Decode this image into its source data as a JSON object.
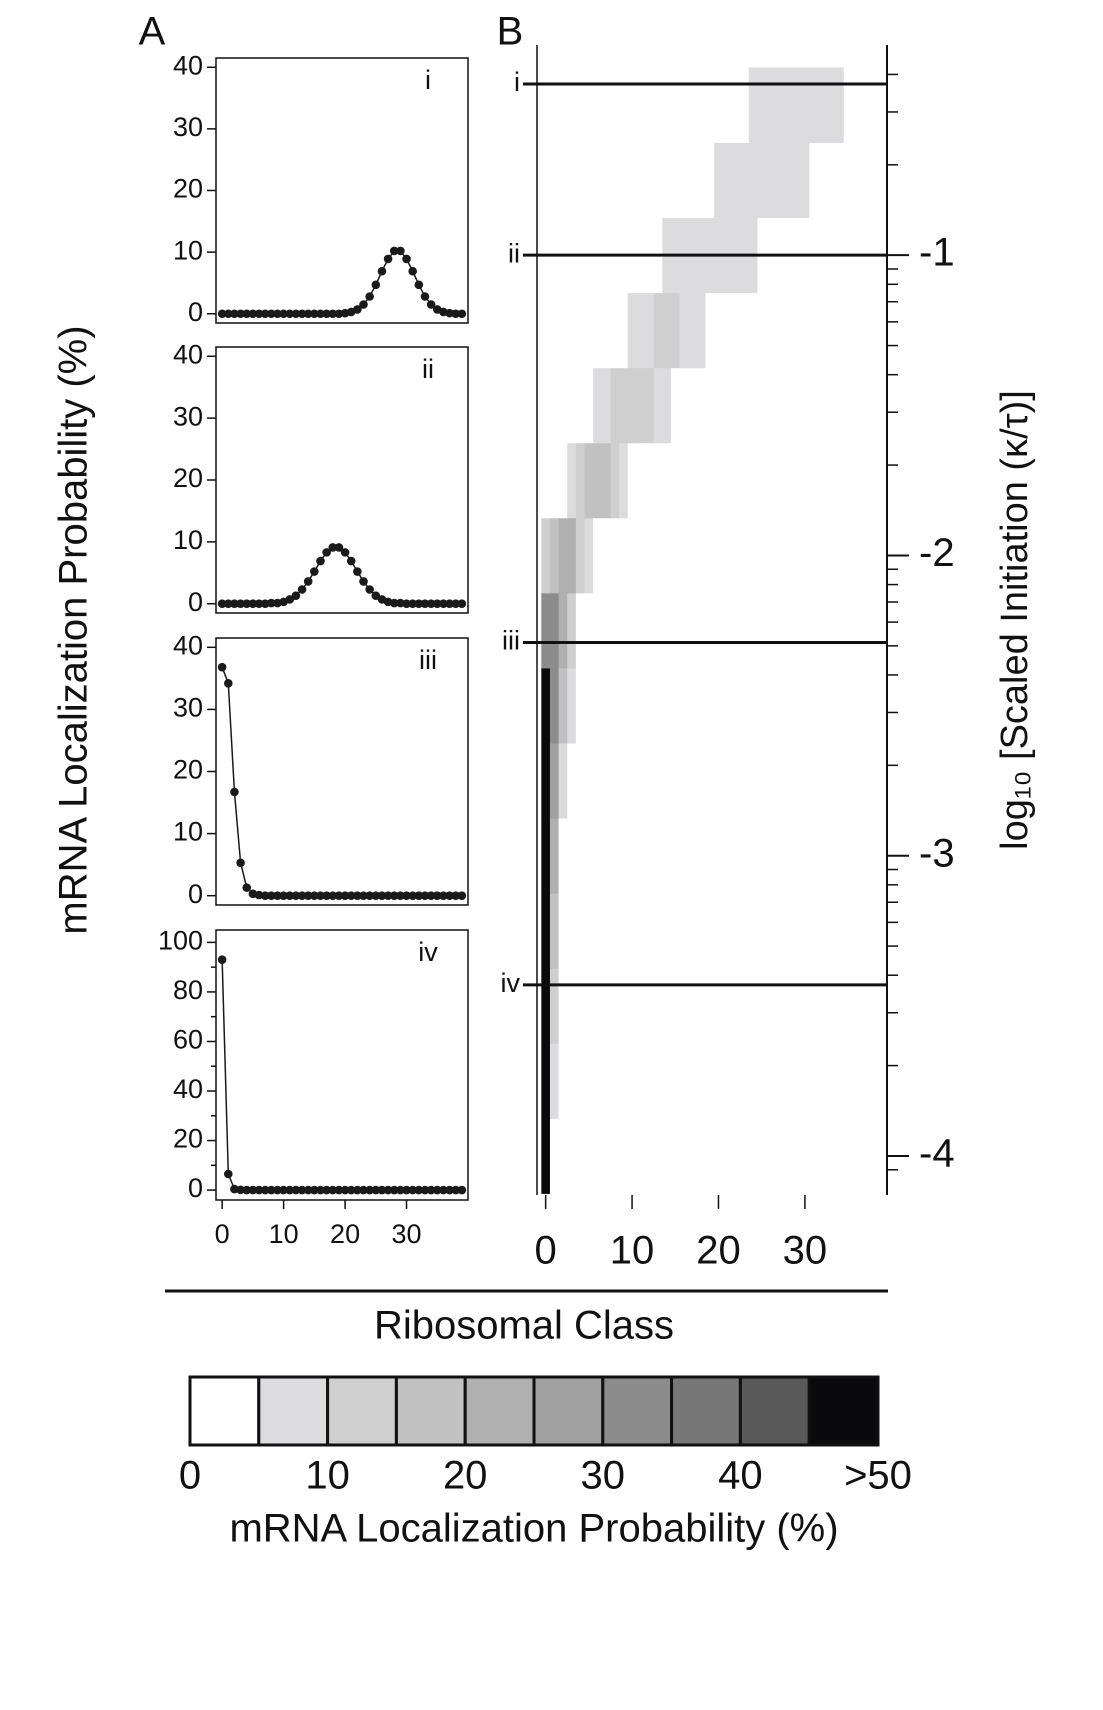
{
  "figure": {
    "panel_labels": [
      "A",
      "B"
    ],
    "ylabel": "mRNA Localization Probability (%)",
    "xlabel": "Ribosomal Class"
  },
  "chart_data": [
    {
      "type": "line",
      "annotation": "i",
      "color": "#1a1a1a",
      "x": [
        0,
        1,
        2,
        3,
        4,
        5,
        6,
        7,
        8,
        9,
        10,
        11,
        12,
        13,
        14,
        15,
        16,
        17,
        18,
        19,
        20,
        21,
        22,
        23,
        24,
        25,
        26,
        27,
        28,
        29,
        30,
        31,
        32,
        33,
        34,
        35,
        36,
        37,
        38,
        39
      ],
      "values": [
        0,
        0,
        0,
        0,
        0,
        0,
        0,
        0,
        0,
        0,
        0,
        0,
        0,
        0,
        0,
        0,
        0,
        0,
        0,
        0,
        0.1,
        0.3,
        0.7,
        1.5,
        2.8,
        4.7,
        6.9,
        8.9,
        10.2,
        10.2,
        8.9,
        6.9,
        4.7,
        2.8,
        1.5,
        0.7,
        0.3,
        0.1,
        0,
        0
      ],
      "xlim": [
        -1,
        40
      ],
      "ylim": [
        -1.5,
        41.5
      ],
      "yticks": [
        0,
        10,
        20,
        30,
        40
      ]
    },
    {
      "type": "line",
      "annotation": "ii",
      "color": "#1a1a1a",
      "x": [
        0,
        1,
        2,
        3,
        4,
        5,
        6,
        7,
        8,
        9,
        10,
        11,
        12,
        13,
        14,
        15,
        16,
        17,
        18,
        19,
        20,
        21,
        22,
        23,
        24,
        25,
        26,
        27,
        28,
        29,
        30,
        31,
        32,
        33,
        34,
        35,
        36,
        37,
        38,
        39
      ],
      "values": [
        0,
        0,
        0,
        0,
        0,
        0,
        0,
        0,
        0.1,
        0.1,
        0.3,
        0.7,
        1.3,
        2.3,
        3.6,
        5.2,
        6.9,
        8.3,
        9.1,
        9.1,
        8.3,
        6.9,
        5.2,
        3.6,
        2.3,
        1.3,
        0.7,
        0.3,
        0.1,
        0.1,
        0,
        0,
        0,
        0,
        0,
        0,
        0,
        0,
        0,
        0
      ],
      "xlim": [
        -1,
        40
      ],
      "ylim": [
        -1.5,
        41.5
      ],
      "yticks": [
        0,
        10,
        20,
        30,
        40
      ]
    },
    {
      "type": "line",
      "annotation": "iii",
      "color": "#1a1a1a",
      "x": [
        0,
        1,
        2,
        3,
        4,
        5,
        6,
        7,
        8,
        9,
        10,
        11,
        12,
        13,
        14,
        15,
        16,
        17,
        18,
        19,
        20,
        21,
        22,
        23,
        24,
        25,
        26,
        27,
        28,
        29,
        30,
        31,
        32,
        33,
        34,
        35,
        36,
        37,
        38,
        39
      ],
      "values": [
        36.8,
        34.2,
        16.7,
        5.3,
        1.3,
        0.3,
        0.1,
        0,
        0,
        0,
        0,
        0,
        0,
        0,
        0,
        0,
        0,
        0,
        0,
        0,
        0,
        0,
        0,
        0,
        0,
        0,
        0,
        0,
        0,
        0,
        0,
        0,
        0,
        0,
        0,
        0,
        0,
        0,
        0,
        0
      ],
      "xlim": [
        -1,
        40
      ],
      "ylim": [
        -1.5,
        41.5
      ],
      "yticks": [
        0,
        10,
        20,
        30,
        40
      ]
    },
    {
      "type": "line",
      "annotation": "iv",
      "color": "#1a1a1a",
      "x": [
        0,
        1,
        2,
        3,
        4,
        5,
        6,
        7,
        8,
        9,
        10,
        11,
        12,
        13,
        14,
        15,
        16,
        17,
        18,
        19,
        20,
        21,
        22,
        23,
        24,
        25,
        26,
        27,
        28,
        29,
        30,
        31,
        32,
        33,
        34,
        35,
        36,
        37,
        38,
        39
      ],
      "values": [
        93,
        6.5,
        0.4,
        0.1,
        0,
        0,
        0,
        0,
        0,
        0,
        0,
        0,
        0,
        0,
        0,
        0,
        0,
        0,
        0,
        0,
        0,
        0,
        0,
        0,
        0,
        0,
        0,
        0,
        0,
        0,
        0,
        0,
        0,
        0,
        0,
        0,
        0,
        0,
        0,
        0
      ],
      "xlim": [
        -1,
        40
      ],
      "ylim": [
        -4,
        105
      ],
      "yticks": [
        0,
        20,
        40,
        60,
        80,
        100
      ],
      "yminor_ticks": [
        10,
        30,
        50,
        70,
        90
      ],
      "xticks": [
        0,
        10,
        20,
        30
      ]
    },
    {
      "type": "heatmap",
      "ylabel": "log₁₀ [Scaled Initiation (κ/τ)]",
      "x": [
        0,
        1,
        2,
        3,
        4,
        5,
        6,
        7,
        8,
        9,
        10,
        11,
        12,
        13,
        14,
        15,
        16,
        17,
        18,
        19,
        20,
        21,
        22,
        23,
        24,
        25,
        26,
        27,
        28,
        29,
        30,
        31,
        32,
        33,
        34,
        35,
        36,
        37,
        38,
        39
      ],
      "y": [
        -4,
        -3.75,
        -3.5,
        -3.25,
        -3,
        -2.75,
        -2.5,
        -2.25,
        -2,
        -1.75,
        -1.5,
        -1.25,
        -1,
        -0.75,
        -0.5
      ],
      "z": [
        [
          95,
          4,
          0,
          0,
          0,
          0,
          0,
          0,
          0,
          0,
          0,
          0,
          0,
          0,
          0,
          0,
          0,
          0,
          0,
          0,
          0,
          0,
          0,
          0,
          0,
          0,
          0,
          0,
          0,
          0,
          0,
          0,
          0,
          0,
          0,
          0,
          0,
          0,
          0,
          0
        ],
        [
          92,
          7,
          1,
          0,
          0,
          0,
          0,
          0,
          0,
          0,
          0,
          0,
          0,
          0,
          0,
          0,
          0,
          0,
          0,
          0,
          0,
          0,
          0,
          0,
          0,
          0,
          0,
          0,
          0,
          0,
          0,
          0,
          0,
          0,
          0,
          0,
          0,
          0,
          0,
          0
        ],
        [
          88,
          11,
          1,
          0,
          0,
          0,
          0,
          0,
          0,
          0,
          0,
          0,
          0,
          0,
          0,
          0,
          0,
          0,
          0,
          0,
          0,
          0,
          0,
          0,
          0,
          0,
          0,
          0,
          0,
          0,
          0,
          0,
          0,
          0,
          0,
          0,
          0,
          0,
          0,
          0
        ],
        [
          83,
          15,
          2,
          0,
          0,
          0,
          0,
          0,
          0,
          0,
          0,
          0,
          0,
          0,
          0,
          0,
          0,
          0,
          0,
          0,
          0,
          0,
          0,
          0,
          0,
          0,
          0,
          0,
          0,
          0,
          0,
          0,
          0,
          0,
          0,
          0,
          0,
          0,
          0,
          0
        ],
        [
          75,
          21,
          4,
          0,
          0,
          0,
          0,
          0,
          0,
          0,
          0,
          0,
          0,
          0,
          0,
          0,
          0,
          0,
          0,
          0,
          0,
          0,
          0,
          0,
          0,
          0,
          0,
          0,
          0,
          0,
          0,
          0,
          0,
          0,
          0,
          0,
          0,
          0,
          0,
          0
        ],
        [
          62,
          28,
          8,
          2,
          0,
          0,
          0,
          0,
          0,
          0,
          0,
          0,
          0,
          0,
          0,
          0,
          0,
          0,
          0,
          0,
          0,
          0,
          0,
          0,
          0,
          0,
          0,
          0,
          0,
          0,
          0,
          0,
          0,
          0,
          0,
          0,
          0,
          0,
          0,
          0
        ],
        [
          45,
          33,
          15,
          5,
          1,
          0,
          0,
          0,
          0,
          0,
          0,
          0,
          0,
          0,
          0,
          0,
          0,
          0,
          0,
          0,
          0,
          0,
          0,
          0,
          0,
          0,
          0,
          0,
          0,
          0,
          0,
          0,
          0,
          0,
          0,
          0,
          0,
          0,
          0,
          0
        ],
        [
          30,
          32,
          22,
          10,
          4,
          1,
          0,
          0,
          0,
          0,
          0,
          0,
          0,
          0,
          0,
          0,
          0,
          0,
          0,
          0,
          0,
          0,
          0,
          0,
          0,
          0,
          0,
          0,
          0,
          0,
          0,
          0,
          0,
          0,
          0,
          0,
          0,
          0,
          0,
          0
        ],
        [
          12,
          18,
          22,
          20,
          14,
          8,
          4,
          1,
          0,
          0,
          0,
          0,
          0,
          0,
          0,
          0,
          0,
          0,
          0,
          0,
          0,
          0,
          0,
          0,
          0,
          0,
          0,
          0,
          0,
          0,
          0,
          0,
          0,
          0,
          0,
          0,
          0,
          0,
          0,
          0
        ],
        [
          1,
          2,
          4,
          8,
          12,
          15,
          16,
          15,
          12,
          8,
          4,
          2,
          1,
          0,
          0,
          0,
          0,
          0,
          0,
          0,
          0,
          0,
          0,
          0,
          0,
          0,
          0,
          0,
          0,
          0,
          0,
          0,
          0,
          0,
          0,
          0,
          0,
          0,
          0,
          0
        ],
        [
          0,
          0,
          1,
          1,
          2,
          4,
          6,
          8,
          10,
          12,
          13,
          12,
          10,
          8,
          6,
          4,
          2,
          1,
          1,
          0,
          0,
          0,
          0,
          0,
          0,
          0,
          0,
          0,
          0,
          0,
          0,
          0,
          0,
          0,
          0,
          0,
          0,
          0,
          0,
          0
        ],
        [
          0,
          0,
          0,
          0,
          0,
          1,
          1,
          2,
          3,
          4,
          6,
          8,
          9,
          10,
          10,
          10,
          9,
          8,
          6,
          4,
          3,
          2,
          1,
          1,
          0,
          0,
          0,
          0,
          0,
          0,
          0,
          0,
          0,
          0,
          0,
          0,
          0,
          0,
          0,
          0
        ],
        [
          0,
          0,
          0,
          0,
          0,
          0,
          0,
          0,
          1,
          1,
          1,
          2,
          3,
          4,
          5,
          6,
          7,
          8,
          9,
          9,
          9,
          8,
          7,
          6,
          5,
          4,
          3,
          2,
          1,
          1,
          1,
          0,
          0,
          0,
          0,
          0,
          0,
          0,
          0,
          0
        ],
        [
          0,
          0,
          0,
          0,
          0,
          0,
          0,
          0,
          0,
          0,
          0,
          0,
          0,
          0,
          1,
          1,
          2,
          2,
          3,
          4,
          5,
          6,
          7,
          7,
          8,
          8,
          8,
          7,
          7,
          6,
          5,
          4,
          3,
          2,
          2,
          1,
          1,
          0,
          0,
          0
        ],
        [
          0,
          0,
          0,
          0,
          0,
          0,
          0,
          0,
          0,
          0,
          0,
          0,
          0,
          0,
          0,
          0,
          0,
          1,
          1,
          1,
          2,
          3,
          3,
          4,
          5,
          6,
          6,
          7,
          7,
          7,
          7,
          7,
          6,
          6,
          5,
          4,
          3,
          3,
          2,
          1
        ]
      ],
      "xlim": [
        -1,
        39.5
      ],
      "ylim": [
        -4.13,
        -0.3
      ],
      "xticks": [
        0,
        10,
        20,
        30
      ],
      "yticks": [
        -1,
        -2,
        -3,
        -4
      ],
      "yminor_ticks": [
        -4.046,
        -3.699,
        -3.523,
        -3.398,
        -3.301,
        -3.222,
        -3.155,
        -3.097,
        -3.046,
        -2.699,
        -2.523,
        -2.398,
        -2.301,
        -2.222,
        -2.155,
        -2.097,
        -2.046,
        -1.699,
        -1.523,
        -1.398,
        -1.301,
        -1.222,
        -1.155,
        -1.097,
        -1.046,
        -0.699,
        -0.523,
        -0.398
      ],
      "hlines": [
        {
          "value": -0.43,
          "label": "i"
        },
        {
          "value": -1,
          "label": "ii"
        },
        {
          "value": -2.29,
          "label": "iii"
        },
        {
          "value": -3.43,
          "label": "iv"
        }
      ]
    },
    {
      "type": "colorbar",
      "xlabel": "mRNA Localization Probability (%)",
      "bins": [
        0,
        5,
        10,
        15,
        20,
        25,
        30,
        35,
        40,
        45,
        50
      ],
      "colors": [
        "#ffffff",
        "#dcdcde",
        "#cfcfcf",
        "#c1c1c1",
        "#b0b0b0",
        "#a0a0a0",
        "#8c8c8c",
        "#777777",
        "#595959",
        "#0a0a0c"
      ],
      "xticks": [
        0,
        10,
        20,
        30,
        40,
        {
          "value": 50,
          "label": ">50"
        }
      ]
    }
  ]
}
